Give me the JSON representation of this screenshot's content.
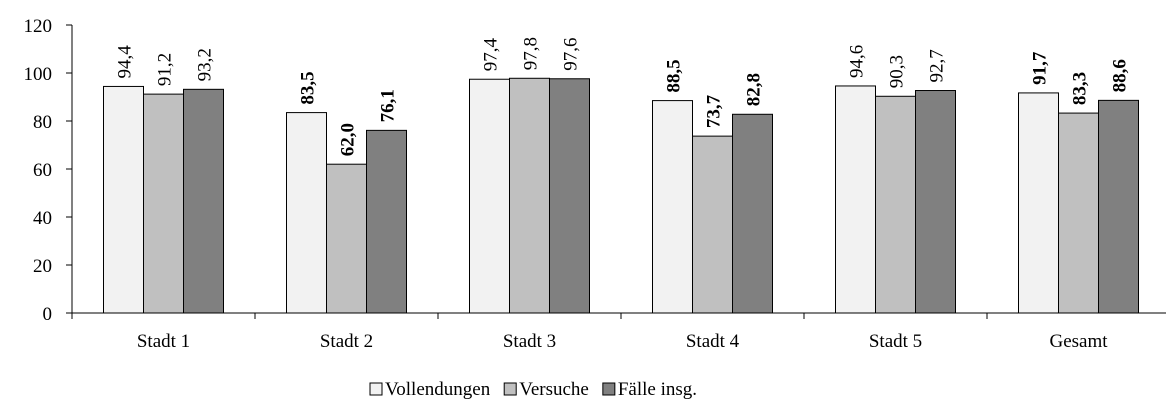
{
  "chart_data": {
    "type": "bar",
    "categories": [
      "Stadt 1",
      "Stadt 2",
      "Stadt 3",
      "Stadt 4",
      "Stadt 5",
      "Gesamt"
    ],
    "series": [
      {
        "name": "Vollendungen",
        "color": "#f2f2f2",
        "values": [
          94.4,
          83.5,
          97.4,
          88.5,
          94.6,
          91.7
        ],
        "value_labels": [
          "94,4",
          "83,5",
          "97,4",
          "88,5",
          "94,6",
          "91,7"
        ]
      },
      {
        "name": "Versuche",
        "color": "#c0c0c0",
        "values": [
          91.2,
          62.0,
          97.8,
          73.7,
          90.3,
          83.3
        ],
        "value_labels": [
          "91,2",
          "62,0",
          "97,8",
          "73,7",
          "90,3",
          "83,3"
        ]
      },
      {
        "name": "Fälle insg.",
        "color": "#808080",
        "values": [
          93.2,
          76.1,
          97.6,
          82.8,
          92.7,
          88.6
        ],
        "value_labels": [
          "93,2",
          "76,1",
          "97,6",
          "82,8",
          "92,7",
          "88,6"
        ]
      }
    ],
    "bold_labels": [
      false,
      true,
      false,
      true,
      false,
      true
    ],
    "ylim": [
      0,
      120
    ],
    "yticks": [
      0,
      20,
      40,
      60,
      80,
      100,
      120
    ],
    "grid": false,
    "legend": "bottom"
  }
}
